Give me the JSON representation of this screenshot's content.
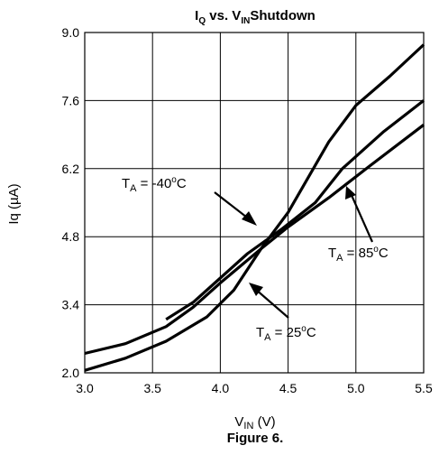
{
  "chart_data": {
    "type": "line",
    "title": {
      "main": "I",
      "main_sub": "Q",
      "mid": " vs. V",
      "mid_sub": "IN",
      "tail": "Shutdown"
    },
    "xlabel": {
      "main": "V",
      "sub": "IN",
      "tail": " (V)"
    },
    "ylabel": "Iq (µA)",
    "caption": "Figure 6.",
    "xlim": [
      3.0,
      5.5
    ],
    "ylim": [
      2.0,
      9.0
    ],
    "x_ticks": [
      "3.0",
      "3.5",
      "4.0",
      "4.5",
      "5.0",
      "5.5"
    ],
    "y_ticks": [
      "2.0",
      "3.4",
      "4.8",
      "6.2",
      "7.6",
      "9.0"
    ],
    "grid": true,
    "series": [
      {
        "label": {
          "main": "T",
          "sub": "A",
          "mid": " = -40",
          "sup": "o",
          "tail": "C"
        },
        "points": [
          [
            3.0,
            2.05
          ],
          [
            3.3,
            2.3
          ],
          [
            3.6,
            2.65
          ],
          [
            3.9,
            3.15
          ],
          [
            4.1,
            3.7
          ],
          [
            4.3,
            4.55
          ],
          [
            4.5,
            5.3
          ],
          [
            4.8,
            6.75
          ],
          [
            5.0,
            7.5
          ],
          [
            5.25,
            8.1
          ],
          [
            5.5,
            8.75
          ]
        ]
      },
      {
        "label": {
          "main": "T",
          "sub": "A",
          "mid": " = 25",
          "sup": "o",
          "tail": "C"
        },
        "points": [
          [
            3.6,
            3.1
          ],
          [
            3.8,
            3.45
          ],
          [
            4.0,
            3.95
          ],
          [
            4.2,
            4.45
          ],
          [
            4.45,
            4.95
          ],
          [
            4.7,
            5.5
          ],
          [
            4.9,
            6.2
          ],
          [
            5.2,
            6.95
          ],
          [
            5.5,
            7.6
          ]
        ]
      },
      {
        "label": {
          "main": "T",
          "sub": "A",
          "mid": " = 85",
          "sup": "o",
          "tail": "C"
        },
        "points": [
          [
            3.0,
            2.4
          ],
          [
            3.3,
            2.6
          ],
          [
            3.6,
            2.95
          ],
          [
            3.8,
            3.35
          ],
          [
            4.0,
            3.85
          ],
          [
            4.3,
            4.55
          ],
          [
            4.5,
            5.0
          ],
          [
            4.8,
            5.6
          ],
          [
            5.1,
            6.25
          ],
          [
            5.5,
            7.1
          ]
        ]
      }
    ]
  }
}
